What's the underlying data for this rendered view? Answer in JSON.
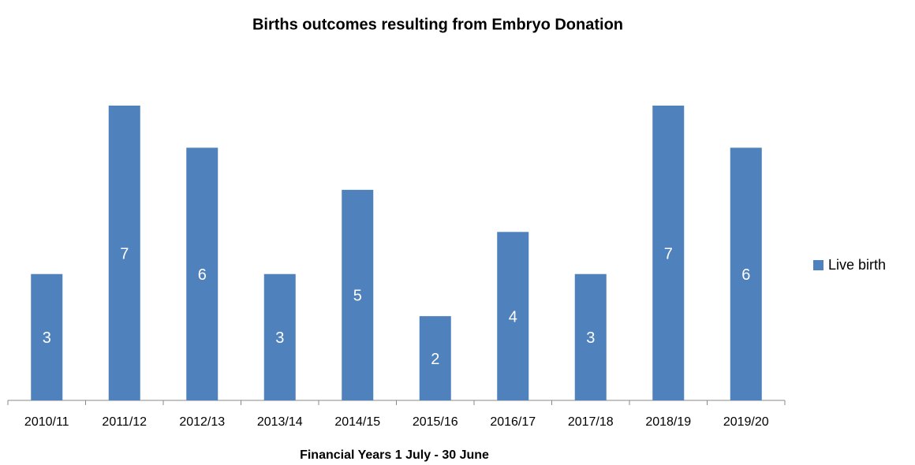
{
  "chart_data": {
    "type": "bar",
    "title": "Births outcomes resulting from Embryo Donation",
    "x_label": "Financial Years 1 July - 30 June",
    "categories": [
      "2010/11",
      "2011/12",
      "2012/13",
      "2013/14",
      "2014/15",
      "2015/16",
      "2016/17",
      "2017/18",
      "2018/19",
      "2019/20"
    ],
    "series": [
      {
        "name": "Live birth",
        "color": "#4f81bd",
        "values": [
          3,
          7,
          6,
          3,
          5,
          2,
          4,
          3,
          7,
          6
        ]
      }
    ],
    "ylim": [
      0,
      7
    ],
    "legend": "right"
  }
}
